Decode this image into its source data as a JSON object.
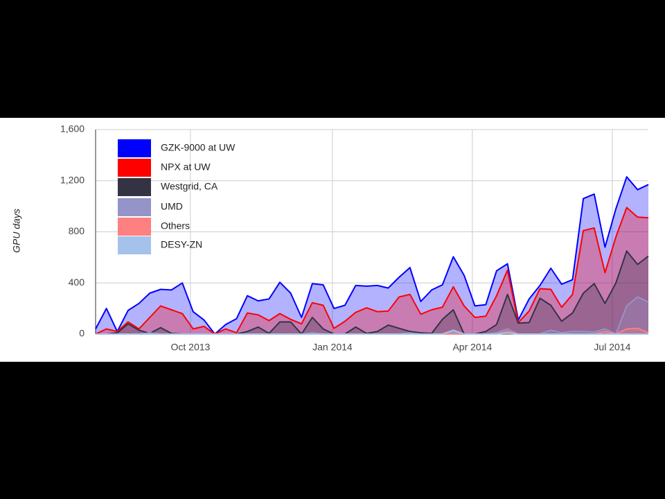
{
  "chart_data": {
    "type": "area",
    "y_axis_label": "GPU days",
    "categories": [
      null,
      null,
      null,
      null,
      null,
      null,
      null,
      null,
      null,
      null,
      null,
      null,
      null,
      null,
      null,
      null,
      null,
      null,
      null,
      null,
      null,
      null,
      null,
      null,
      null,
      null,
      null,
      null,
      null,
      null,
      null,
      null,
      null,
      null,
      null,
      null,
      null,
      null,
      null,
      null,
      null,
      null,
      null,
      null,
      null,
      null,
      null,
      null,
      null,
      null,
      null,
      null
    ],
    "xlim": [
      0,
      51
    ],
    "xticks": [
      {
        "value": 8.75,
        "label": "Oct 2013"
      },
      {
        "value": 21.85,
        "label": "Jan 2014"
      },
      {
        "value": 34.76,
        "label": "Apr 2014"
      },
      {
        "value": 47.67,
        "label": "Jul 2014"
      }
    ],
    "ylim": [
      0,
      1600
    ],
    "yticks": [
      0,
      400,
      800,
      {
        "value": 1200,
        "label": "1,200"
      },
      {
        "value": 1600,
        "label": "1,600"
      }
    ],
    "grid": true,
    "legend": "top-left",
    "series": [
      {
        "name": "GZK-9000 at UW",
        "color": "#0000ff",
        "values": [
          40,
          200,
          20,
          185,
          240,
          320,
          350,
          345,
          400,
          175,
          110,
          0,
          75,
          120,
          300,
          260,
          275,
          405,
          320,
          130,
          395,
          385,
          200,
          225,
          380,
          375,
          380,
          360,
          445,
          520,
          255,
          345,
          385,
          605,
          460,
          220,
          230,
          495,
          550,
          110,
          275,
          380,
          515,
          390,
          425,
          1060,
          1095,
          680,
          980,
          1230,
          1130,
          1170
        ]
      },
      {
        "name": "NPX at UW",
        "color": "#ff0000",
        "values": [
          0,
          40,
          20,
          95,
          40,
          130,
          220,
          190,
          160,
          40,
          60,
          0,
          40,
          10,
          165,
          150,
          105,
          160,
          115,
          80,
          245,
          225,
          45,
          100,
          170,
          205,
          175,
          180,
          290,
          310,
          155,
          190,
          210,
          370,
          220,
          130,
          140,
          300,
          500,
          90,
          180,
          355,
          350,
          210,
          310,
          810,
          830,
          480,
          760,
          990,
          915,
          910
        ]
      },
      {
        "name": "Westgrid, CA",
        "color": "#333344",
        "values": [
          0,
          0,
          10,
          80,
          30,
          5,
          50,
          5,
          0,
          0,
          0,
          0,
          0,
          0,
          20,
          55,
          5,
          95,
          95,
          0,
          130,
          40,
          0,
          0,
          55,
          5,
          20,
          70,
          45,
          20,
          10,
          5,
          115,
          190,
          0,
          0,
          20,
          75,
          310,
          85,
          90,
          280,
          225,
          100,
          165,
          320,
          395,
          240,
          400,
          650,
          545,
          610
        ]
      },
      {
        "name": "UMD",
        "color": "#9494c8",
        "values": [
          0,
          0,
          0,
          0,
          0,
          10,
          0,
          0,
          0,
          0,
          0,
          0,
          0,
          0,
          0,
          0,
          0,
          0,
          0,
          0,
          10,
          0,
          0,
          0,
          0,
          0,
          0,
          0,
          0,
          10,
          0,
          0,
          0,
          20,
          0,
          0,
          0,
          10,
          40,
          0,
          0,
          0,
          30,
          10,
          20,
          20,
          15,
          40,
          0,
          220,
          290,
          250
        ]
      },
      {
        "name": "Others",
        "color": "#ff8080",
        "values": [
          0,
          0,
          0,
          0,
          0,
          0,
          0,
          0,
          0,
          0,
          0,
          0,
          0,
          0,
          0,
          0,
          0,
          0,
          0,
          0,
          0,
          0,
          0,
          0,
          0,
          0,
          0,
          0,
          0,
          0,
          0,
          0,
          0,
          0,
          0,
          0,
          0,
          0,
          20,
          0,
          0,
          0,
          0,
          0,
          0,
          0,
          0,
          20,
          0,
          40,
          45,
          10
        ]
      },
      {
        "name": "DESY-ZN",
        "color": "#a4c2ea",
        "values": [
          0,
          0,
          0,
          0,
          0,
          0,
          0,
          0,
          0,
          0,
          0,
          0,
          0,
          0,
          0,
          0,
          0,
          0,
          0,
          0,
          0,
          0,
          0,
          0,
          0,
          0,
          0,
          0,
          0,
          0,
          0,
          0,
          0,
          30,
          0,
          0,
          0,
          0,
          10,
          0,
          0,
          0,
          0,
          0,
          0,
          0,
          0,
          0,
          0,
          0,
          0,
          0
        ]
      }
    ]
  }
}
